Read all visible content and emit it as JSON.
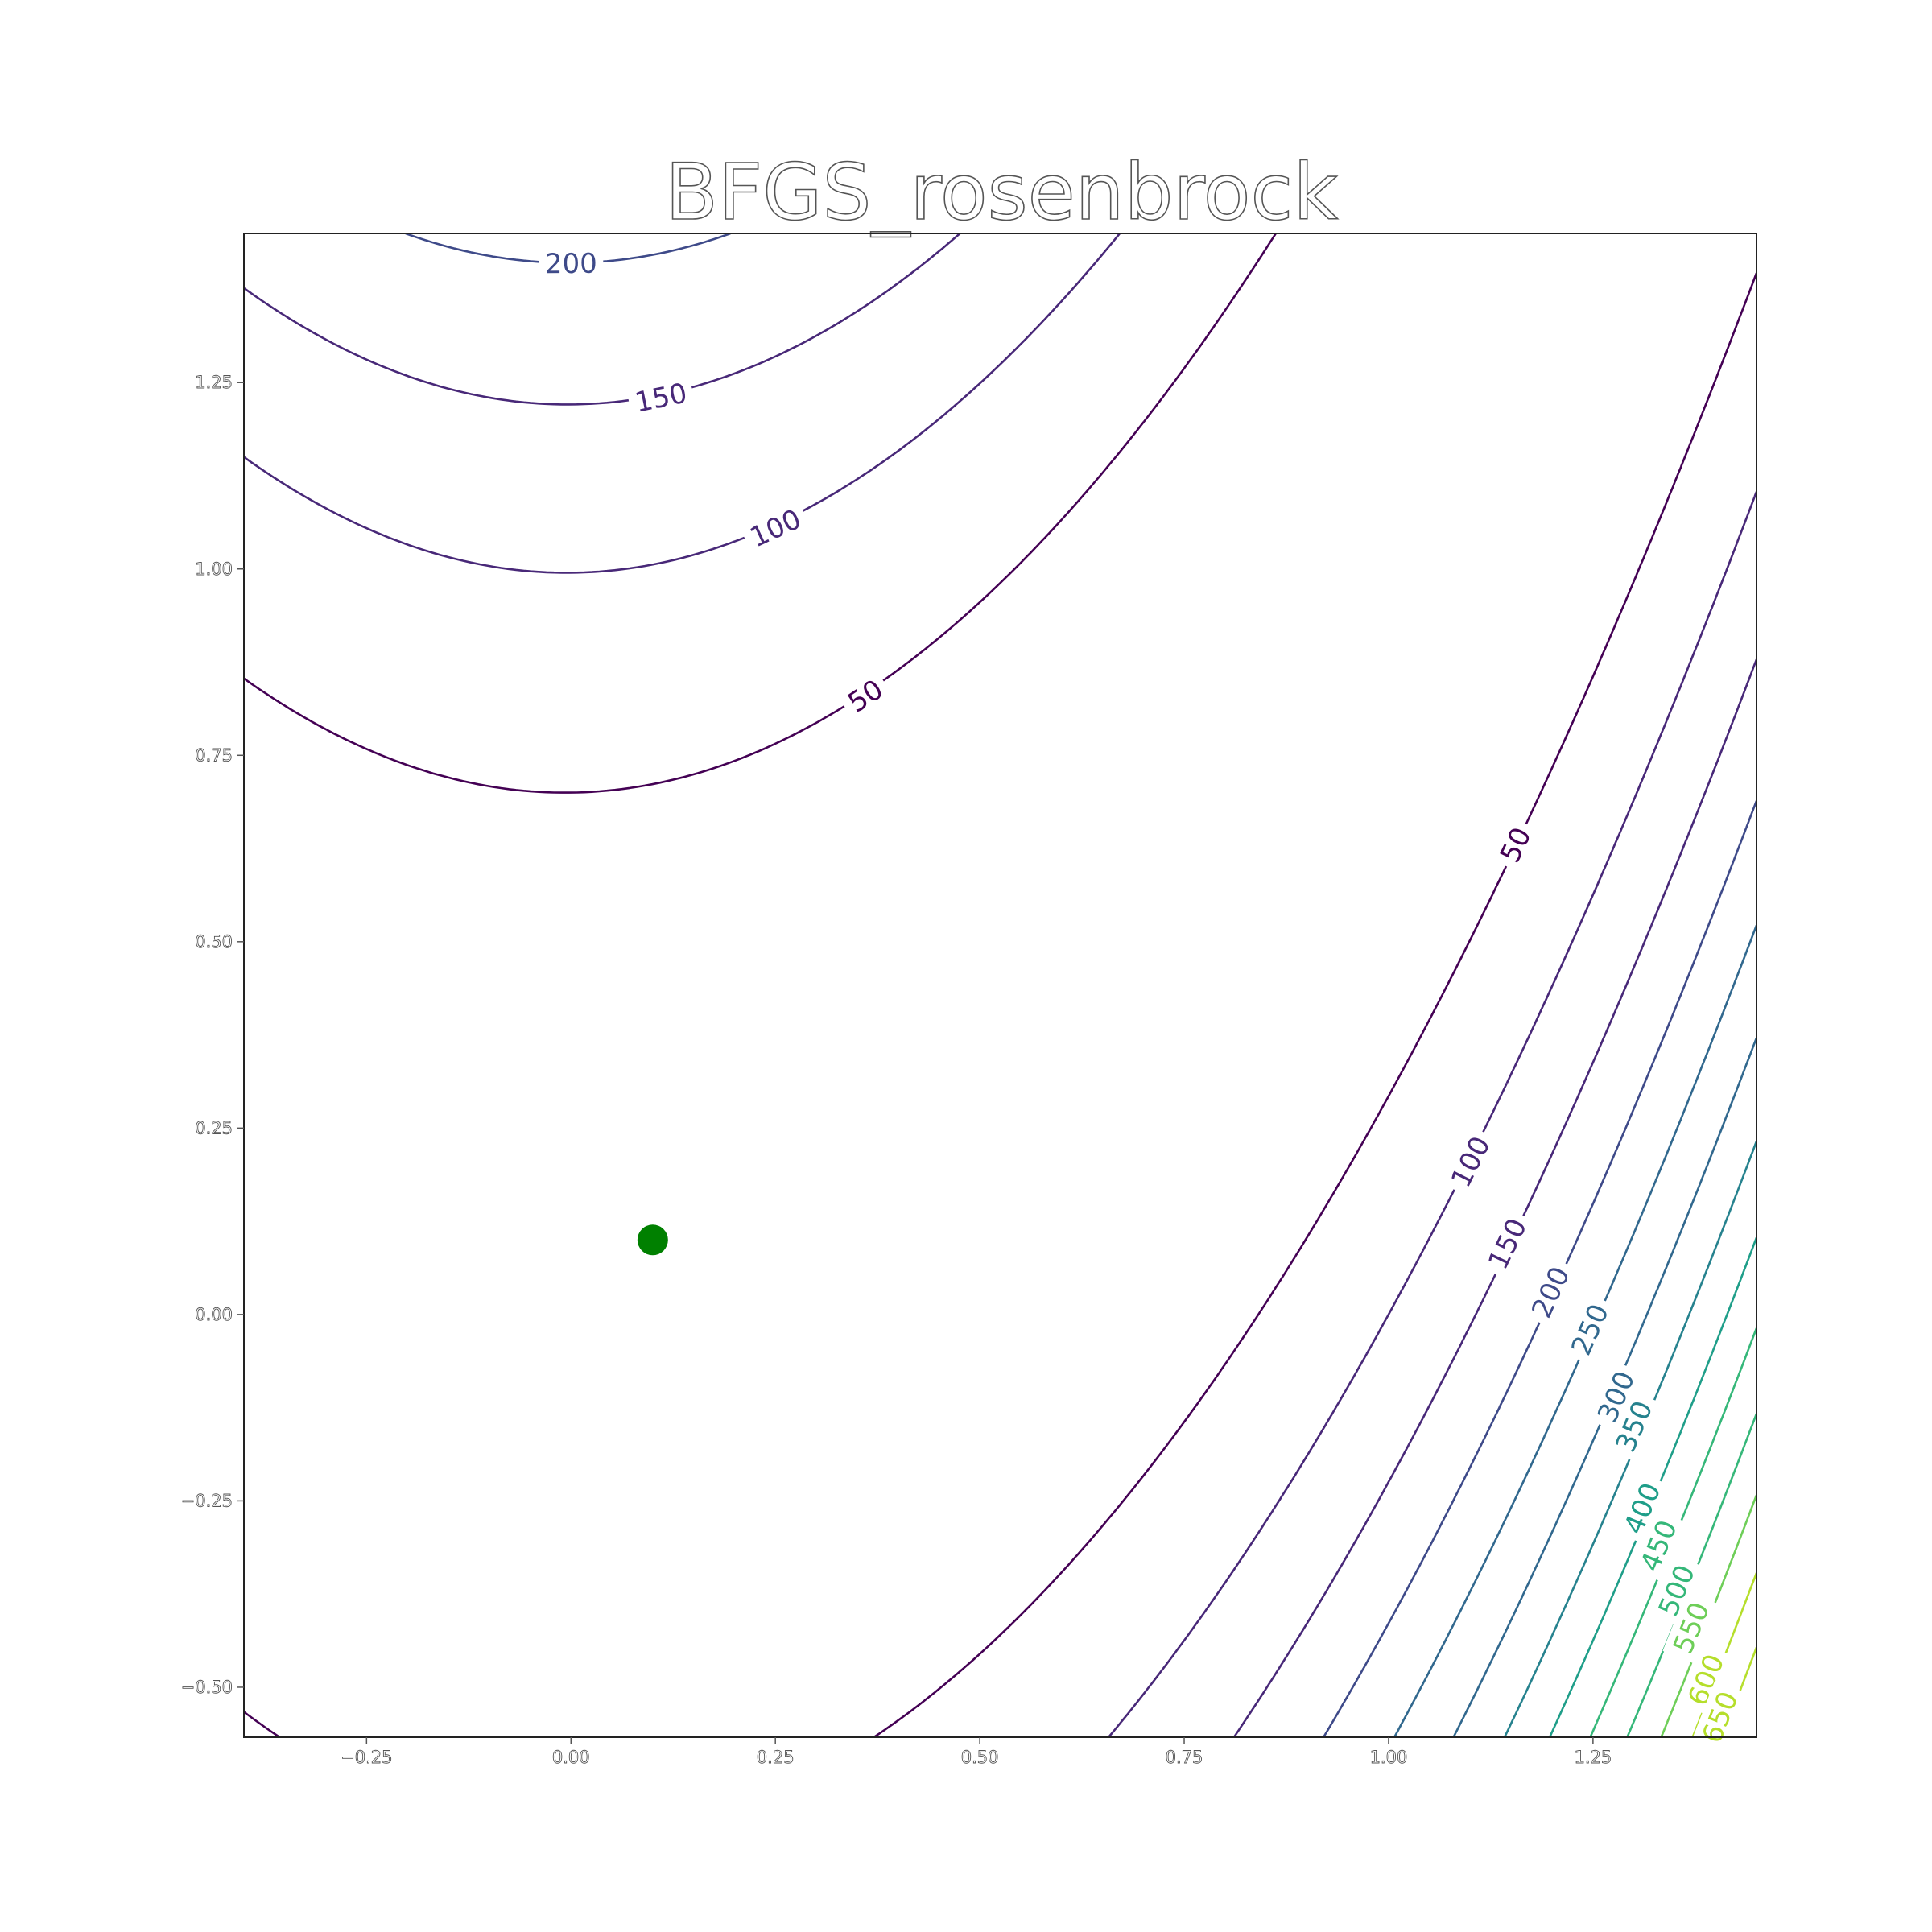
{
  "chart_data": {
    "type": "contour",
    "title": "BFGS_rosenbrock",
    "function": "rosenbrock",
    "xlim": [
      -0.4,
      1.45
    ],
    "ylim": [
      -0.567,
      1.45
    ],
    "xticks": [
      -0.25,
      0.0,
      0.25,
      0.5,
      0.75,
      1.0,
      1.25
    ],
    "xtick_labels": [
      "−0.25",
      "0.00",
      "0.25",
      "0.50",
      "0.75",
      "1.00",
      "1.25"
    ],
    "yticks": [
      -0.5,
      -0.25,
      0.0,
      0.25,
      0.5,
      0.75,
      1.0,
      1.25
    ],
    "ytick_labels": [
      "−0.50",
      "−0.25",
      "0.00",
      "0.25",
      "0.50",
      "0.75",
      "1.00",
      "1.25"
    ],
    "levels": [
      50,
      100,
      150,
      200,
      250,
      300,
      350,
      400,
      450,
      500,
      550,
      600,
      650
    ],
    "level_colors": [
      "#440154",
      "#482878",
      "#3e4a89",
      "#31688e",
      "#26828e",
      "#1f9e89",
      "#35b779",
      "#6ece58",
      "#b5de2b",
      "#fde725"
    ],
    "labels_shown": [
      {
        "text": "200",
        "x": 0.0,
        "y": 1.41,
        "level": 200
      },
      {
        "text": "150",
        "x": 0.11,
        "y": 1.23,
        "level": 150
      },
      {
        "text": "100",
        "x": 0.25,
        "y": 1.055,
        "level": 100
      },
      {
        "text": "50",
        "x": 0.36,
        "y": 0.83,
        "level": 50
      },
      {
        "text": "50",
        "x": 1.155,
        "y": 0.63,
        "level": 50
      },
      {
        "text": "100",
        "x": 1.1,
        "y": 0.205,
        "level": 100
      },
      {
        "text": "150",
        "x": 1.145,
        "y": 0.095,
        "level": 150
      },
      {
        "text": "200",
        "x": 1.198,
        "y": 0.03,
        "level": 200
      },
      {
        "text": "250",
        "x": 1.246,
        "y": -0.02,
        "level": 250
      },
      {
        "text": "300",
        "x": 1.278,
        "y": -0.11,
        "level": 300
      },
      {
        "text": "350",
        "x": 1.3,
        "y": -0.15,
        "level": 350
      },
      {
        "text": "400",
        "x": 1.31,
        "y": -0.26,
        "level": 400
      },
      {
        "text": "450",
        "x": 1.33,
        "y": -0.31,
        "level": 450
      },
      {
        "text": "500",
        "x": 1.352,
        "y": -0.37,
        "level": 500
      },
      {
        "text": "550",
        "x": 1.37,
        "y": -0.42,
        "level": 550
      },
      {
        "text": "600",
        "x": 1.388,
        "y": -0.49,
        "level": 600
      },
      {
        "text": "650",
        "x": 1.405,
        "y": -0.54,
        "level": 650
      }
    ],
    "points": [
      {
        "x": 0.1,
        "y": 0.1,
        "color": "#008000"
      }
    ],
    "grid": false,
    "legend": "none"
  }
}
